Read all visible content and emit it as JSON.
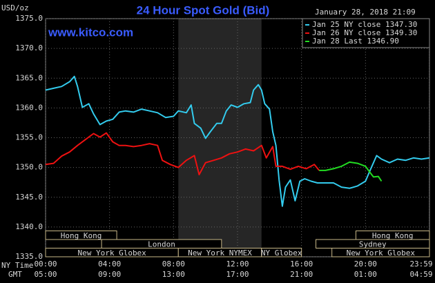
{
  "chart_data": {
    "type": "line",
    "title": "24 Hour Spot Gold (Bid)",
    "y_label": "USD/oz",
    "watermark": "www.kitco.com",
    "timestamp": "January 28, 2018 21:09",
    "x_row_labels": [
      "NY Time",
      "GMT"
    ],
    "xlim": [
      0,
      24
    ],
    "xticks": [
      {
        "value": 0,
        "label": "00:00"
      },
      {
        "value": 4,
        "label": "04:00"
      },
      {
        "value": 8,
        "label": "08:00"
      },
      {
        "value": 12,
        "label": "12:00"
      },
      {
        "value": 16,
        "label": "16:00"
      },
      {
        "value": 20,
        "label": "20:00"
      },
      {
        "value": 23.983,
        "label": "23:59"
      }
    ],
    "x2ticks": [
      {
        "value": 0,
        "label": "05:00"
      },
      {
        "value": 4,
        "label": "09:00"
      },
      {
        "value": 8,
        "label": "13:00"
      },
      {
        "value": 12,
        "label": "17:00"
      },
      {
        "value": 16,
        "label": "21:00"
      },
      {
        "value": 20,
        "label": "01:00"
      },
      {
        "value": 23.983,
        "label": "04:59"
      }
    ],
    "ylim": [
      1335,
      1375
    ],
    "yticks": [
      {
        "value": 1335,
        "label": "1335.0"
      },
      {
        "value": 1340,
        "label": "1340.0"
      },
      {
        "value": 1345,
        "label": "1345.0"
      },
      {
        "value": 1350,
        "label": "1350.0"
      },
      {
        "value": 1355,
        "label": "1355.0"
      },
      {
        "value": 1360,
        "label": "1360.0"
      },
      {
        "value": 1365,
        "label": "1365.0"
      },
      {
        "value": 1370,
        "label": "1370.0"
      },
      {
        "value": 1375,
        "label": "1375.0"
      }
    ],
    "grid": true,
    "legend": "top-right",
    "sessions": [
      [
        {
          "label": "Hong Kong",
          "start": 0,
          "end": 4.45
        },
        {
          "label": "Hong Kong",
          "start": 19.4,
          "end": 24
        }
      ],
      [
        {
          "label": "London",
          "start": 3.5,
          "end": 11
        },
        {
          "label": "Sydney",
          "start": 16.9,
          "end": 24
        }
      ],
      [
        {
          "label": "New York Globex",
          "start": 0,
          "end": 8.3
        },
        {
          "label": "New York NYMEX",
          "start": 8.3,
          "end": 13.5
        },
        {
          "label": "NY Globex",
          "start": 13.5,
          "end": 16
        },
        {
          "label": "New York Globex",
          "start": 17.9,
          "end": 24
        }
      ]
    ],
    "series": [
      {
        "name": "Jan 25 NY close 1347.30",
        "color": "#33ccee",
        "x": [
          0,
          0.5,
          1,
          1.5,
          1.8,
          2,
          2.3,
          2.7,
          3,
          3.4,
          3.8,
          4.2,
          4.6,
          5,
          5.5,
          6,
          6.5,
          7,
          7.5,
          8,
          8.3,
          8.8,
          9.1,
          9.3,
          9.7,
          10,
          10.3,
          10.7,
          11,
          11.3,
          11.6,
          12,
          12.4,
          12.8,
          13,
          13.3,
          13.5,
          13.7,
          14,
          14.2,
          14.4,
          14.6,
          14.8,
          15,
          15.3,
          15.6,
          15.9,
          16.2,
          16.6,
          17,
          17.5,
          18,
          18.5,
          19,
          19.5,
          20,
          20.3,
          20.7,
          21,
          21.5,
          22,
          22.5,
          23,
          23.5,
          24
        ],
        "values": [
          1363.0,
          1363.3,
          1363.6,
          1364.4,
          1365.3,
          1363.6,
          1360.1,
          1360.7,
          1359.0,
          1357.2,
          1357.8,
          1358.1,
          1359.3,
          1359.5,
          1359.3,
          1359.8,
          1359.5,
          1359.2,
          1358.4,
          1358.6,
          1359.5,
          1359.2,
          1360.5,
          1357.4,
          1356.6,
          1354.9,
          1356.0,
          1357.4,
          1357.4,
          1359.5,
          1360.5,
          1360.1,
          1360.7,
          1360.9,
          1363.0,
          1363.9,
          1363.0,
          1360.7,
          1359.8,
          1356.0,
          1353.7,
          1347.9,
          1343.5,
          1346.7,
          1347.9,
          1344.4,
          1347.7,
          1348.1,
          1347.7,
          1347.4,
          1347.4,
          1347.4,
          1346.7,
          1346.5,
          1346.9,
          1347.7,
          1349.6,
          1352.0,
          1351.4,
          1350.8,
          1351.4,
          1351.2,
          1351.6,
          1351.4,
          1351.6
        ]
      },
      {
        "name": "Jan 26 NY close 1349.30",
        "color": "#ee1111",
        "x": [
          0,
          0.5,
          1,
          1.5,
          2,
          2.5,
          3,
          3.4,
          3.8,
          4.2,
          4.6,
          5,
          5.5,
          6,
          6.5,
          7,
          7.3,
          7.8,
          8.3,
          8.8,
          9.3,
          9.6,
          10,
          10.5,
          11,
          11.5,
          12,
          12.5,
          13,
          13.5,
          13.8,
          14.2,
          14.4,
          14.8,
          15.3,
          15.8,
          16.3,
          16.8,
          17.1
        ],
        "values": [
          1350.5,
          1350.7,
          1351.9,
          1352.6,
          1353.7,
          1354.7,
          1355.7,
          1355.1,
          1355.8,
          1354.3,
          1353.7,
          1353.7,
          1353.5,
          1353.7,
          1354.0,
          1353.7,
          1351.2,
          1350.5,
          1350.0,
          1351.2,
          1352.0,
          1348.8,
          1350.8,
          1351.2,
          1351.6,
          1352.3,
          1352.6,
          1353.1,
          1352.8,
          1353.7,
          1351.6,
          1353.5,
          1350.2,
          1350.2,
          1349.7,
          1350.2,
          1349.8,
          1350.5,
          1349.5
        ]
      },
      {
        "name": "Jan 28 Last 1346.90",
        "color": "#22dd22",
        "x": [
          17.1,
          17.5,
          18,
          18.5,
          19,
          19.5,
          20,
          20.3,
          20.5,
          20.8,
          21
        ],
        "values": [
          1349.5,
          1349.5,
          1349.8,
          1350.2,
          1350.9,
          1350.7,
          1350.2,
          1349.1,
          1348.4,
          1348.5,
          1347.7
        ]
      }
    ]
  }
}
